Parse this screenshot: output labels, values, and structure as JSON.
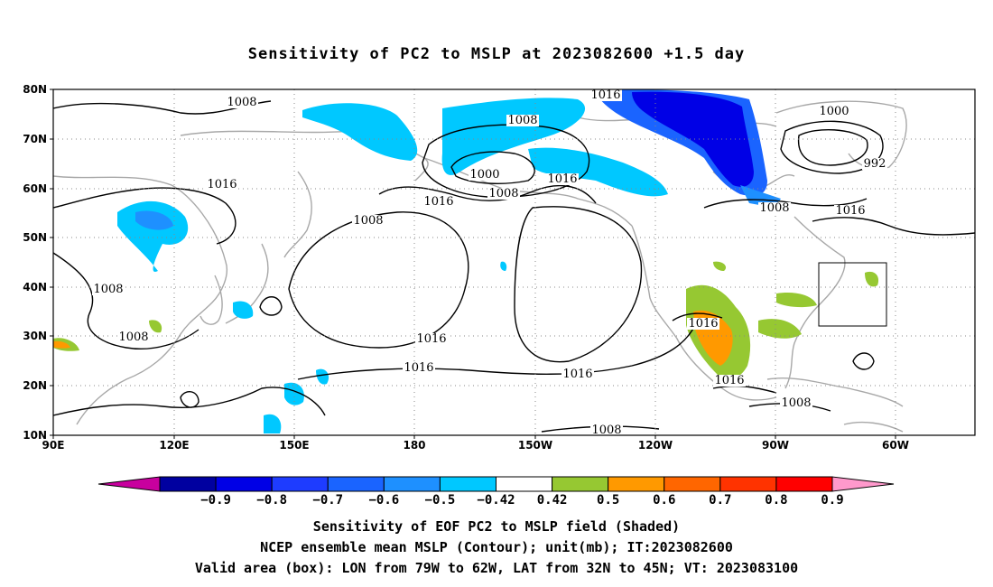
{
  "title": "Sensitivity of PC2 to MSLP at 2023082600 +1.5 day",
  "axes": {
    "lat_labels": [
      "80N",
      "70N",
      "60N",
      "50N",
      "40N",
      "30N",
      "20N",
      "10N"
    ],
    "lon_labels": [
      "90E",
      "120E",
      "150E",
      "180",
      "150W",
      "120W",
      "90W",
      "60W"
    ]
  },
  "contours": [
    {
      "text": "1008"
    },
    {
      "text": "1016"
    },
    {
      "text": "1008"
    },
    {
      "text": "1000"
    },
    {
      "text": "1008"
    },
    {
      "text": "1016"
    },
    {
      "text": "1016"
    },
    {
      "text": "1016"
    },
    {
      "text": "1000"
    },
    {
      "text": "992"
    },
    {
      "text": "1008"
    },
    {
      "text": "1016"
    },
    {
      "text": "1008"
    },
    {
      "text": "1008"
    },
    {
      "text": "1008"
    },
    {
      "text": "1016"
    },
    {
      "text": "1016"
    },
    {
      "text": "1016"
    },
    {
      "text": "1016"
    },
    {
      "text": "1016"
    },
    {
      "text": "1008"
    },
    {
      "text": "1008"
    }
  ],
  "colorbar": {
    "colors": [
      "#c8009e",
      "#0000a0",
      "#0000e6",
      "#1e3cff",
      "#1a64ff",
      "#1e90ff",
      "#00c8ff",
      "#ffffff",
      "#96c832",
      "#ff9900",
      "#ff6600",
      "#ff3300",
      "#ff0000",
      "#ff99cc"
    ],
    "labels": [
      "−0.9",
      "−0.8",
      "−0.7",
      "−0.6",
      "−0.5",
      "−0.42",
      "0.42",
      "0.5",
      "0.6",
      "0.7",
      "0.8",
      "0.9"
    ]
  },
  "captions": {
    "line1": "Sensitivity of EOF PC2 to MSLP field (Shaded)",
    "line2": "NCEP ensemble mean MSLP (Contour); unit(mb); IT:2023082600",
    "line3": "Valid area (box): LON from 79W to 62W, LAT from 32N to 45N; VT: 2023083100"
  }
}
